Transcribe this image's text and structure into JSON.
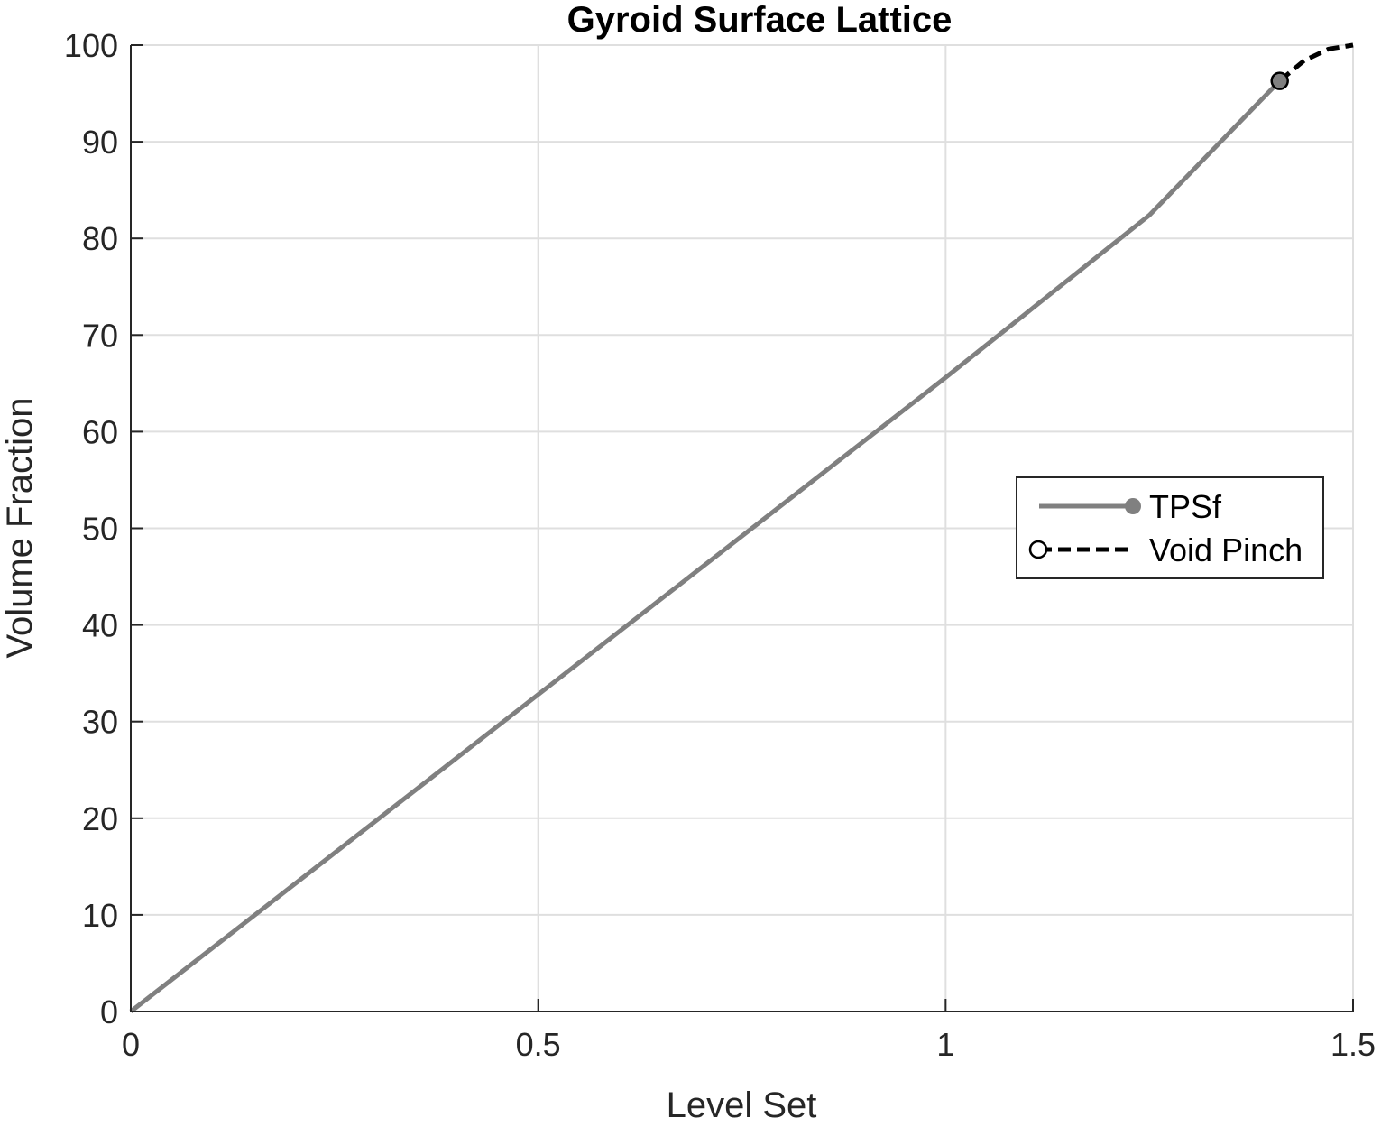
{
  "chart_data": {
    "type": "line",
    "title": "Gyroid Surface Lattice",
    "xlabel": "Level Set",
    "ylabel": "Volume Fraction",
    "xlim": [
      0,
      1.5
    ],
    "ylim": [
      0,
      100
    ],
    "xticks": [
      0,
      0.5,
      1,
      1.5
    ],
    "xtick_labels": [
      "0",
      "0.5",
      "1",
      "1.5"
    ],
    "yticks": [
      0,
      10,
      20,
      30,
      40,
      50,
      60,
      70,
      80,
      90,
      100
    ],
    "ytick_labels": [
      "0",
      "10",
      "20",
      "30",
      "40",
      "50",
      "60",
      "70",
      "80",
      "90",
      "100"
    ],
    "grid": true,
    "legend_position": "right",
    "series": [
      {
        "name": "TPSf",
        "color": "#808080",
        "style": "solid",
        "marker": "filled-circle-end",
        "x": [
          0,
          0.25,
          0.5,
          0.75,
          1.0,
          1.25,
          1.41
        ],
        "y": [
          0,
          16.4,
          32.8,
          49.2,
          65.6,
          82.4,
          96.3
        ]
      },
      {
        "name": "Void Pinch",
        "color": "#000000",
        "style": "dashed",
        "marker": "open-circle-start",
        "x": [
          1.41,
          1.44,
          1.47,
          1.5
        ],
        "y": [
          96.3,
          98.4,
          99.6,
          100
        ]
      }
    ]
  }
}
